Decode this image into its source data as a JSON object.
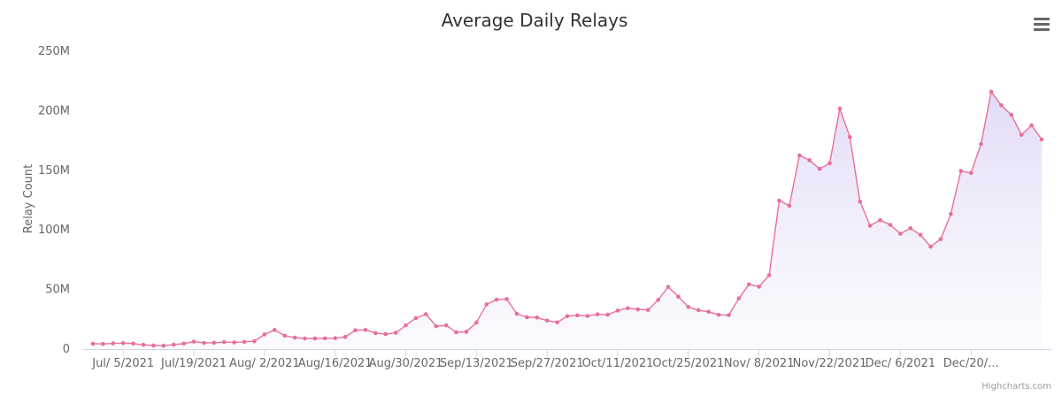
{
  "chart_data": {
    "type": "area",
    "title": "Average Daily Relays",
    "xlabel": "",
    "ylabel": "Relay Count",
    "ylim": [
      0,
      250000000
    ],
    "yticks": [
      0,
      50000000,
      100000000,
      150000000,
      200000000,
      250000000
    ],
    "ytick_labels": [
      "0",
      "50M",
      "100M",
      "150M",
      "200M",
      "250M"
    ],
    "xtick_labels": [
      "Jul/ 5/2021",
      "Jul/19/2021",
      "Aug/ 2/2021",
      "Aug/16/2021",
      "Aug/30/2021",
      "Sep/13/2021",
      "Sep/27/2021",
      "Oct/11/2021",
      "Oct/25/2021",
      "Nov/ 8/2021",
      "Nov/22/2021",
      "Dec/ 6/2021",
      "Dec/20/..."
    ],
    "x_start": "2021-06-29",
    "x_step_days": 2,
    "values": [
      4500000,
      4300000,
      4800000,
      5000000,
      4600000,
      3600000,
      3000000,
      2800000,
      3700000,
      4600000,
      6200000,
      5200000,
      5300000,
      5800000,
      5600000,
      6000000,
      6600000,
      12300000,
      16000000,
      11200000,
      9600000,
      8900000,
      8900000,
      9000000,
      9100000,
      10200000,
      15800000,
      16100000,
      13400000,
      12600000,
      13600000,
      19900000,
      26000000,
      29300000,
      19200000,
      19900000,
      14100000,
      14500000,
      22300000,
      37500000,
      41500000,
      42000000,
      29600000,
      26700000,
      26500000,
      23900000,
      22400000,
      27600000,
      28300000,
      27800000,
      29200000,
      28800000,
      32300000,
      34300000,
      33300000,
      32800000,
      41200000,
      52200000,
      44000000,
      35300000,
      32600000,
      31300000,
      28700000,
      28500000,
      42500000,
      54300000,
      52400000,
      62000000,
      124600000,
      120300000,
      162600000,
      158600000,
      151200000,
      156100000,
      201900000,
      178000000,
      123800000,
      103600000,
      108200000,
      104300000,
      96800000,
      101400000,
      95800000,
      86000000,
      92300000,
      113400000,
      149500000,
      147800000,
      172200000,
      216000000,
      204700000,
      196600000,
      179900000,
      187800000,
      176000000
    ],
    "series_color": "#e86f9a",
    "fill_top_color": "#ddd4f5",
    "grid": false,
    "legend": "none",
    "credits": "Highcharts.com",
    "menu_icon": "hamburger-menu-icon"
  }
}
